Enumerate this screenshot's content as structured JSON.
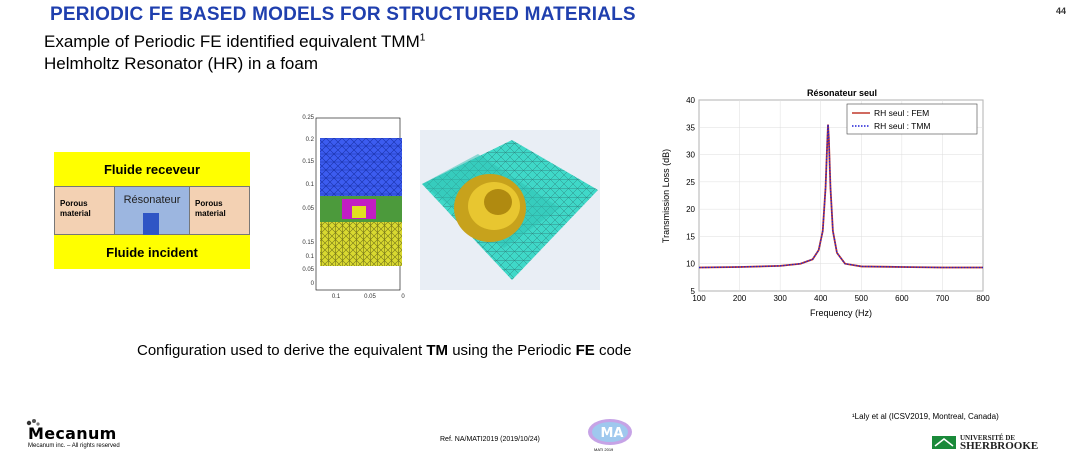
{
  "slide": {
    "title": "PERIODIC FE BASED MODELS FOR STRUCTURED MATERIALS",
    "number": "44",
    "subtitle1": "Example of Periodic FE identified equivalent TMM",
    "subtitle1_sup": "1",
    "subtitle2": "Helmholtz Resonator (HR)  in a foam",
    "caption_pre": "Configuration used to derive the equivalent ",
    "caption_tm": "TM",
    "caption_mid": " using the Periodic ",
    "caption_fe": "FE",
    "caption_post": " code",
    "footnote": "¹Laly et al  (ICSV2019, Montreal, Canada)",
    "ref": "Ref. NA/MATI2019  (2019/10/24)"
  },
  "schematic": {
    "top_fluid": "Fluide receveur",
    "bottom_fluid": "Fluide incident",
    "left_material": "Porous material",
    "right_material": "Porous material",
    "resonator": "Résonateur",
    "colors": {
      "fluid": "#ffff00",
      "porous": "#f3d1b3",
      "resonator": "#9cb6e0",
      "neck": "#2f55c5"
    }
  },
  "fe_mesh": {
    "y_ticks_upper": [
      "0.25",
      "0.2",
      "0.15",
      "0.1",
      "0.05"
    ],
    "y_ticks_lower": [
      "0.15",
      "0.1",
      "0.05",
      "0"
    ],
    "x_ticks": [
      "0.1",
      "0.05",
      "0"
    ]
  },
  "footer": {
    "company": "Mecanum",
    "copyright": "Mecanum inc. – All rights reserved",
    "conf_logo": "MA",
    "conf_sub": "MATI 2019",
    "university_line1": "UNIVERSITÉ DE",
    "university_line2": "SHERBROOKE"
  },
  "chart_data": {
    "type": "line",
    "title": "Résonateur seul",
    "xlabel": "Frequency (Hz)",
    "ylabel": "Transmission Loss (dB)",
    "xlim": [
      100,
      800
    ],
    "ylim": [
      5,
      40
    ],
    "xticks": [
      100,
      200,
      300,
      400,
      500,
      600,
      700,
      800
    ],
    "yticks": [
      5,
      10,
      15,
      20,
      25,
      30,
      35,
      40
    ],
    "legend_position": "top-right",
    "series": [
      {
        "name": "RH seul : FEM",
        "color": "#c0392b",
        "style": "solid",
        "x": [
          100,
          200,
          300,
          350,
          380,
          395,
          405,
          412,
          416,
          418,
          420,
          424,
          430,
          440,
          460,
          500,
          600,
          700,
          800
        ],
        "y": [
          9.3,
          9.4,
          9.6,
          10.0,
          10.8,
          12.5,
          16.0,
          24.0,
          32.0,
          35.5,
          33.0,
          24.0,
          16.0,
          12.0,
          10.0,
          9.5,
          9.4,
          9.3,
          9.3
        ]
      },
      {
        "name": "RH seul : TMM",
        "color": "#1f1fd6",
        "style": "dotted",
        "x": [
          100,
          200,
          300,
          350,
          380,
          395,
          405,
          412,
          416,
          418,
          420,
          424,
          430,
          440,
          460,
          500,
          600,
          700,
          800
        ],
        "y": [
          9.3,
          9.4,
          9.6,
          10.0,
          10.8,
          12.5,
          16.0,
          24.0,
          32.0,
          35.5,
          33.0,
          24.0,
          16.0,
          12.0,
          10.0,
          9.5,
          9.4,
          9.3,
          9.3
        ]
      }
    ]
  }
}
